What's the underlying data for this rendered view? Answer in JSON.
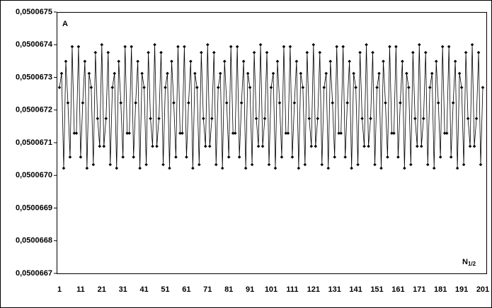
{
  "chart_data": {
    "type": "line",
    "y_label": "A",
    "x_label": "N",
    "x_label_subscript": "1/2",
    "color": "#000000",
    "marker": "diamond",
    "grid": false,
    "categories": [
      1,
      null,
      null,
      null,
      null,
      null,
      null,
      null,
      null,
      null,
      11,
      null,
      null,
      null,
      null,
      null,
      null,
      null,
      null,
      null,
      21,
      null,
      null,
      null,
      null,
      null,
      null,
      null,
      null,
      null,
      31,
      null,
      null,
      null,
      null,
      null,
      null,
      null,
      null,
      null,
      41,
      null,
      null,
      null,
      null,
      null,
      null,
      null,
      null,
      null,
      51,
      null,
      null,
      null,
      null,
      null,
      null,
      null,
      null,
      null,
      61,
      null,
      null,
      null,
      null,
      null,
      null,
      null,
      null,
      null,
      71,
      null,
      null,
      null,
      null,
      null,
      null,
      null,
      null,
      null,
      81,
      null,
      null,
      null,
      null,
      null,
      null,
      null,
      null,
      null,
      91,
      null,
      null,
      null,
      null,
      null,
      null,
      null,
      null,
      null,
      101,
      null,
      null,
      null,
      null,
      null,
      null,
      null,
      null,
      null,
      111,
      null,
      null,
      null,
      null,
      null,
      null,
      null,
      null,
      null,
      121,
      null,
      null,
      null,
      null,
      null,
      null,
      null,
      null,
      null,
      131,
      null,
      null,
      null,
      null,
      null,
      null,
      null,
      null,
      null,
      141,
      null,
      null,
      null,
      null,
      null,
      null,
      null,
      null,
      null,
      151,
      null,
      null,
      null,
      null,
      null,
      null,
      null,
      null,
      null,
      161,
      null,
      null,
      null,
      null,
      null,
      null,
      null,
      null,
      null,
      171,
      null,
      null,
      null,
      null,
      null,
      null,
      null,
      null,
      null,
      181,
      null,
      null,
      null,
      null,
      null,
      null,
      null,
      null,
      null,
      191,
      null,
      null,
      null,
      null,
      null,
      null,
      null,
      null,
      null,
      201
    ],
    "values": [
      0.050067269,
      0.050067312,
      0.050067022,
      0.050067349,
      0.050067222,
      0.050067056,
      0.050067394,
      0.050067129,
      0.050067129,
      0.050067394,
      0.050067056,
      0.050067222,
      0.050067349,
      0.050067022,
      0.050067312,
      0.050067269,
      0.050067033,
      0.050067376,
      0.050067174,
      0.050067089,
      0.0500674,
      0.050067089,
      0.050067174,
      0.050067376,
      0.050067033,
      0.050067269,
      0.050067312,
      0.050067022,
      0.050067349,
      0.050067222,
      0.050067056,
      0.050067394,
      0.050067129,
      0.050067129,
      0.050067394,
      0.050067056,
      0.050067222,
      0.050067349,
      0.050067022,
      0.050067312,
      0.050067269,
      0.050067033,
      0.050067376,
      0.050067174,
      0.050067089,
      0.0500674,
      0.050067089,
      0.050067174,
      0.050067376,
      0.050067033,
      0.050067269,
      0.050067312,
      0.050067022,
      0.050067349,
      0.050067222,
      0.050067056,
      0.050067394,
      0.050067129,
      0.050067129,
      0.050067394,
      0.050067056,
      0.050067222,
      0.050067349,
      0.050067022,
      0.050067312,
      0.050067269,
      0.050067033,
      0.050067376,
      0.050067174,
      0.050067089,
      0.0500674,
      0.050067089,
      0.050067174,
      0.050067376,
      0.050067033,
      0.050067269,
      0.050067312,
      0.050067022,
      0.050067349,
      0.050067222,
      0.050067056,
      0.050067394,
      0.050067129,
      0.050067129,
      0.050067394,
      0.050067056,
      0.050067222,
      0.050067349,
      0.050067022,
      0.050067312,
      0.050067269,
      0.050067033,
      0.050067376,
      0.050067174,
      0.050067089,
      0.0500674,
      0.050067089,
      0.050067174,
      0.050067376,
      0.050067033,
      0.050067269,
      0.050067312,
      0.050067022,
      0.050067349,
      0.050067222,
      0.050067056,
      0.050067394,
      0.050067129,
      0.050067129,
      0.050067394,
      0.050067056,
      0.050067222,
      0.050067349,
      0.050067022,
      0.050067312,
      0.050067269,
      0.050067033,
      0.050067376,
      0.050067174,
      0.050067089,
      0.0500674,
      0.050067089,
      0.050067174,
      0.050067376,
      0.050067033,
      0.050067269,
      0.050067312,
      0.050067022,
      0.050067349,
      0.050067222,
      0.050067056,
      0.050067394,
      0.050067129,
      0.050067129,
      0.050067394,
      0.050067056,
      0.050067222,
      0.050067349,
      0.050067022,
      0.050067312,
      0.050067269,
      0.050067033,
      0.050067376,
      0.050067174,
      0.050067089,
      0.0500674,
      0.050067089,
      0.050067174,
      0.050067376,
      0.050067033,
      0.050067269,
      0.050067312,
      0.050067022,
      0.050067349,
      0.050067222,
      0.050067056,
      0.050067394,
      0.050067129,
      0.050067129,
      0.050067394,
      0.050067056,
      0.050067222,
      0.050067349,
      0.050067022,
      0.050067312,
      0.050067269,
      0.050067033,
      0.050067376,
      0.050067174,
      0.050067089,
      0.0500674,
      0.050067089,
      0.050067174,
      0.050067376,
      0.050067033,
      0.050067269,
      0.050067312,
      0.050067022,
      0.050067349,
      0.050067222,
      0.050067056,
      0.050067394,
      0.050067129,
      0.050067129,
      0.050067394,
      0.050067056,
      0.050067222,
      0.050067349,
      0.050067022,
      0.050067312,
      0.050067269,
      0.050067033,
      0.050067376,
      0.050067174,
      0.050067089,
      0.0500674,
      0.050067089,
      0.050067174,
      0.050067376,
      0.050067033,
      0.050067269
    ],
    "ylim": [
      0.0500667,
      0.0500675
    ],
    "yticks": [
      {
        "value": 0.0500667,
        "label": "0,0500667"
      },
      {
        "value": 0.0500668,
        "label": "0,0500668"
      },
      {
        "value": 0.0500669,
        "label": "0,0500669"
      },
      {
        "value": 0.050067,
        "label": "0,0500670"
      },
      {
        "value": 0.0500671,
        "label": "0,0500671"
      },
      {
        "value": 0.0500672,
        "label": "0,0500672"
      },
      {
        "value": 0.0500673,
        "label": "0,0500673"
      },
      {
        "value": 0.0500674,
        "label": "0,0500674"
      },
      {
        "value": 0.0500675,
        "label": "0,0500675"
      }
    ]
  }
}
